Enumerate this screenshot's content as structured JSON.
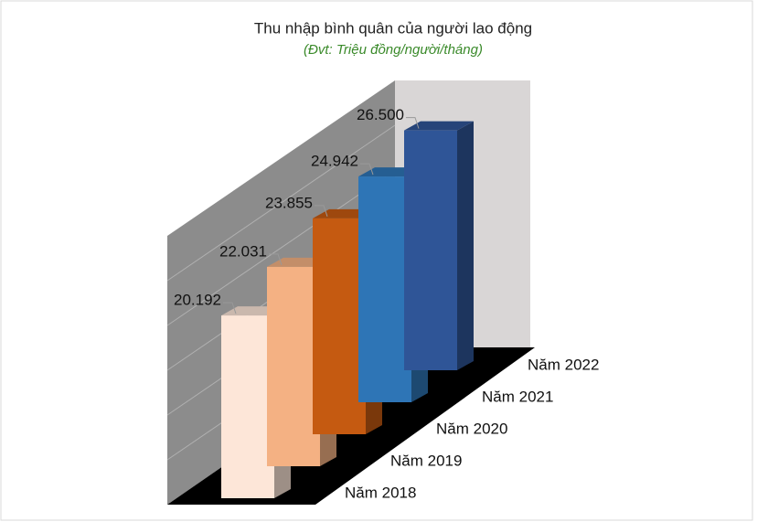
{
  "chart_data": {
    "type": "bar3d",
    "title": "Thu nhập bình quân của người lao động",
    "subtitle": "(Đvt: Triệu đồng/người/tháng)",
    "categories": [
      "Năm 2018",
      "Năm 2019",
      "Năm 2020",
      "Năm 2021",
      "Năm 2022"
    ],
    "values": [
      20.192,
      22.031,
      23.855,
      24.942,
      26.5
    ],
    "value_labels": [
      "20.192",
      "22.031",
      "23.855",
      "24.942",
      "26.500"
    ],
    "colors": [
      "#fde6d8",
      "#f4b183",
      "#c55a11",
      "#2e75b6",
      "#2f5597"
    ],
    "ylim": [
      0,
      30
    ]
  }
}
